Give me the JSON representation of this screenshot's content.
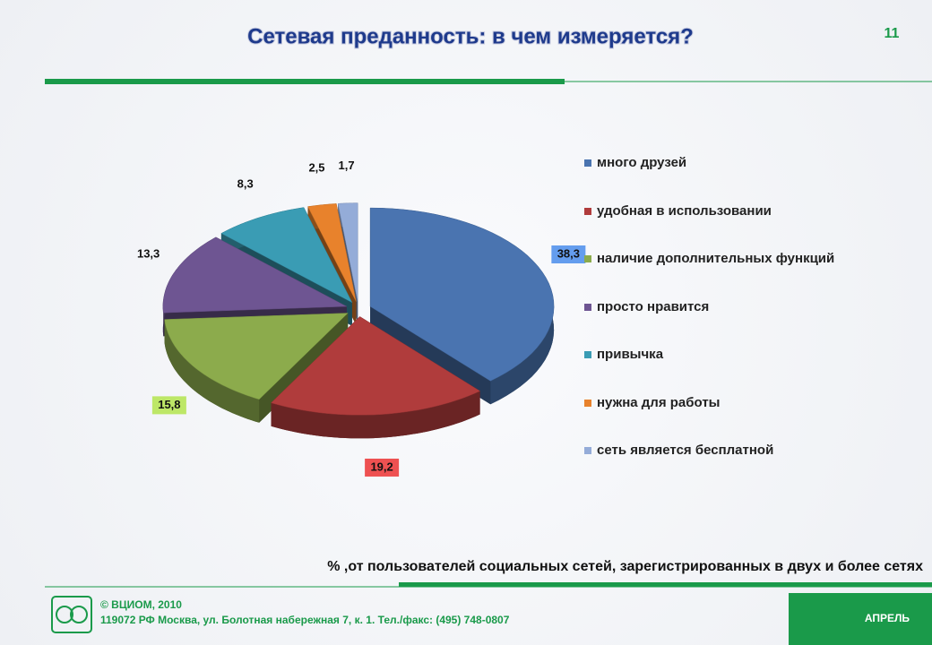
{
  "slide": {
    "page_number": "11",
    "footer": {
      "copyright": "© ВЦИОМ, 2010",
      "address": "119072 РФ Москва, ул. Болотная набережная 7, к. 1.  Тел./факс: (495) 748-0807",
      "month": "АПРЕЛЬ"
    }
  },
  "chart_data": {
    "type": "pie",
    "title": "Сетевая преданность: в чем измеряется?",
    "annotation": "% ,от пользователей социальных сетей, зарегистрированных в двух и более сетях",
    "categories": [
      "много друзей",
      "удобная в использовании",
      "наличие дополнительных функций",
      "просто нравится",
      "привычка",
      "нужна для работы",
      "сеть является бесплатной"
    ],
    "values": [
      38.3,
      19.2,
      15.8,
      13.3,
      8.3,
      2.5,
      1.7
    ],
    "value_labels": [
      "38,3",
      "19,2",
      "15,8",
      "13,3",
      "8,3",
      "2,5",
      "1,7"
    ],
    "colors": [
      "#4a74b0",
      "#b03c3c",
      "#8cab4c",
      "#6e5592",
      "#3a9cb4",
      "#e8822c",
      "#94acd8"
    ],
    "legend": "right"
  }
}
